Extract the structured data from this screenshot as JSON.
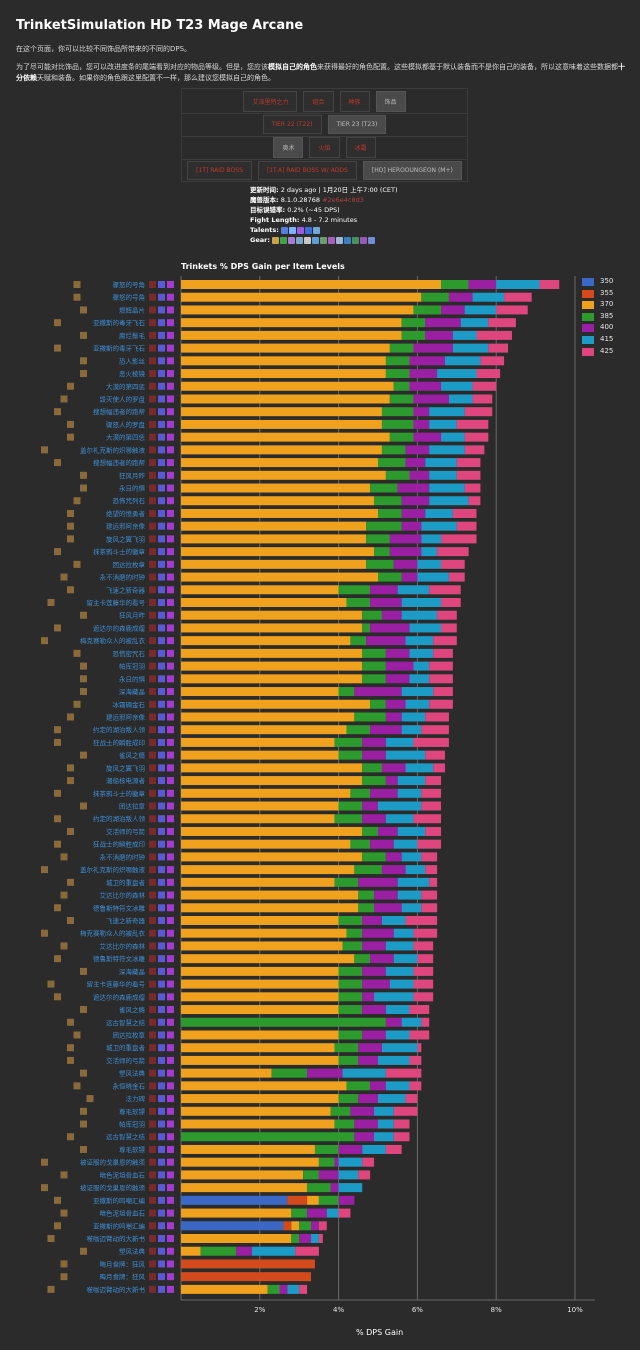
{
  "page": {
    "title": "TrinketSimulation HD T23 Mage Arcane",
    "intro": "在这个页面，你可以比较不同饰品所带来的不同的DPS。",
    "para_a": "为了尽可能对比饰品，您可以改进度条的尾端看到对应的物品等级。但是，您应该",
    "para_bold_a": "模拟自己的角色",
    "para_b": "来获得最好的角色配置。这些模拟都基于默认装备而不是你自己的装备，所以这意味着这些数据都",
    "para_bold_b": "十分依赖",
    "para_c": "天赋和装备。如果你的角色跟这里配置不一样，那么建议您模拟自己的角色。"
  },
  "tabs": {
    "row1": [
      "艾泽里特之力",
      "组合",
      "种族",
      "饰品"
    ],
    "row2": [
      "TIER 22 (T22)",
      "TIER 23 (T23)"
    ],
    "row3": [
      "奥术",
      "火焰",
      "冰霜"
    ],
    "row4": [
      "[1T] RAID BOSS",
      "[1T.A] RAID BOSS W/ ADDS",
      "[HD] HEROOUNGEON (M+)"
    ],
    "selected": {
      "row1": 3,
      "row2": 1,
      "row3": 0,
      "row4": 2
    }
  },
  "meta": {
    "updated_label": "更新时间:",
    "updated_value": "2 days ago | 1月20日 上午7:00 (CET)",
    "version_label": "魔兽版本:",
    "version_value": "8.1.0.28768",
    "version_hash": "#2e6e4c8d3",
    "error_label": "目标误错率:",
    "error_value": "0.2% (~45 DPS)",
    "fight_label": "Fight Length:",
    "fight_value": "4.8 - 7.2 minutes",
    "talents_label": "Talents:",
    "gear_label": "Gear:",
    "talent_icon_colors": [
      "#5a7fd6",
      "#7fb0ff",
      "#9b5de5",
      "#3b6ed8",
      "#6fa8dc"
    ],
    "gear_icon_colors": [
      "#caa24a",
      "#3fa34d",
      "#aa7ad6",
      "#7aa7c7",
      "#c7c7c7",
      "#5aa0d6",
      "#6c9e6c",
      "#aa5fbf",
      "#9fb6d6",
      "#3c7fbf",
      "#4a8f5f",
      "#9b59b6",
      "#6f8fcf"
    ]
  },
  "chart_data": {
    "type": "bar",
    "stacked": true,
    "title": "Trinkets % DPS Gain per Item Levels",
    "xlabel": "% DPS Gain",
    "xlim": [
      0,
      10.5
    ],
    "xticks": [
      2,
      4,
      6,
      8,
      10
    ],
    "xtick_labels": [
      "2%",
      "4%",
      "6%",
      "8%",
      "10%"
    ],
    "grid": true,
    "legend_position": "right",
    "series": [
      {
        "name": "350",
        "color": "#3a68c4"
      },
      {
        "name": "355",
        "color": "#d34a1c"
      },
      {
        "name": "370",
        "color": "#f0a11e"
      },
      {
        "name": "385",
        "color": "#2c9a2c"
      },
      {
        "name": "400",
        "color": "#9b1fa3"
      },
      {
        "name": "415",
        "color": "#1d9bc7"
      },
      {
        "name": "425",
        "color": "#e0467e"
      }
    ],
    "rows": [
      {
        "label": "骤怒的号角",
        "cumulative": [
          null,
          null,
          6.6,
          7.3,
          8.0,
          9.1,
          9.6
        ]
      },
      {
        "label": "骤怒的号角",
        "cumulative": [
          null,
          null,
          6.1,
          6.8,
          7.4,
          8.2,
          8.9
        ]
      },
      {
        "label": "燃辉晶片",
        "cumulative": [
          null,
          null,
          5.9,
          6.6,
          7.2,
          8.0,
          8.8
        ]
      },
      {
        "label": "亚撒斯的毒牙飞石",
        "cumulative": [
          null,
          null,
          5.6,
          6.2,
          7.1,
          7.8,
          8.5
        ]
      },
      {
        "label": "腐烂鬃毛",
        "cumulative": [
          null,
          null,
          5.6,
          6.2,
          6.9,
          7.5,
          8.4
        ]
      },
      {
        "label": "亚撒斯的毒牙飞石",
        "cumulative": [
          null,
          null,
          5.3,
          5.9,
          6.9,
          7.8,
          8.3
        ]
      },
      {
        "label": "恐人影丝",
        "cumulative": [
          null,
          null,
          5.2,
          5.8,
          6.7,
          7.6,
          8.2
        ]
      },
      {
        "label": "恶火棱镜",
        "cumulative": [
          null,
          null,
          5.2,
          5.8,
          6.5,
          7.5,
          8.1
        ]
      },
      {
        "label": "大漠的第四惩",
        "cumulative": [
          null,
          null,
          5.4,
          5.8,
          6.6,
          7.4,
          8.0
        ]
      },
      {
        "label": "毁灭使人的罗盘",
        "cumulative": [
          null,
          null,
          5.3,
          5.9,
          6.8,
          7.4,
          7.9
        ]
      },
      {
        "label": "搜想幅违者的跑帮",
        "cumulative": [
          null,
          null,
          5.1,
          5.9,
          6.3,
          7.2,
          7.9
        ]
      },
      {
        "label": "骤怒人的罗盘",
        "cumulative": [
          null,
          null,
          5.1,
          5.9,
          6.3,
          7.0,
          7.8
        ]
      },
      {
        "label": "大漠的第四惩",
        "cumulative": [
          null,
          null,
          5.3,
          5.9,
          6.6,
          7.2,
          7.8
        ]
      },
      {
        "label": "盖尔礼克斯的炽哪触液",
        "cumulative": [
          null,
          null,
          5.1,
          5.7,
          6.3,
          7.2,
          7.7
        ]
      },
      {
        "label": "搜想幅违者的跑帮",
        "cumulative": [
          null,
          null,
          5.0,
          5.7,
          6.2,
          7.0,
          7.6
        ]
      },
      {
        "label": "狂风月昨",
        "cumulative": [
          null,
          null,
          5.2,
          5.8,
          6.3,
          7.0,
          7.6
        ]
      },
      {
        "label": "永日的惧",
        "cumulative": [
          null,
          null,
          4.8,
          5.5,
          6.3,
          7.2,
          7.6
        ]
      },
      {
        "label": "恐怖咒列石",
        "cumulative": [
          null,
          null,
          4.9,
          5.6,
          6.3,
          7.3,
          7.6
        ]
      },
      {
        "label": "绝望的愤勇者",
        "cumulative": [
          null,
          null,
          5.0,
          5.6,
          6.2,
          6.9,
          7.5
        ]
      },
      {
        "label": "建远邪阿亲像",
        "cumulative": [
          null,
          null,
          4.7,
          5.6,
          6.1,
          7.0,
          7.5
        ]
      },
      {
        "label": "旋风之翼飞羽",
        "cumulative": [
          null,
          null,
          4.7,
          5.3,
          6.1,
          6.6,
          7.5
        ]
      },
      {
        "label": "抹茶鸦斗士的徽章",
        "cumulative": [
          null,
          null,
          4.9,
          5.3,
          6.1,
          6.5,
          7.3
        ]
      },
      {
        "label": "团达拉枚章",
        "cumulative": [
          null,
          null,
          4.7,
          5.4,
          6.0,
          6.6,
          7.2
        ]
      },
      {
        "label": "永不消磨的时钟",
        "cumulative": [
          null,
          null,
          5.0,
          5.6,
          6.0,
          6.8,
          7.2
        ]
      },
      {
        "label": "飞速之新奇器",
        "cumulative": [
          null,
          null,
          4.0,
          4.8,
          5.5,
          6.3,
          7.1
        ]
      },
      {
        "label": "留主卡莲藤华的看号",
        "cumulative": [
          null,
          null,
          4.2,
          4.8,
          5.6,
          6.6,
          7.1
        ]
      },
      {
        "label": "狂风月昨",
        "cumulative": [
          null,
          null,
          4.6,
          5.1,
          5.6,
          6.5,
          7.0
        ]
      },
      {
        "label": "遮达尔的森鹿成瘤",
        "cumulative": [
          null,
          null,
          4.6,
          4.8,
          5.8,
          6.6,
          7.0
        ]
      },
      {
        "label": "梅克赛勒众人的被乱衣",
        "cumulative": [
          null,
          null,
          4.3,
          4.7,
          5.7,
          6.4,
          7.0
        ]
      },
      {
        "label": "恐慌密咒石",
        "cumulative": [
          null,
          null,
          4.6,
          5.2,
          5.8,
          6.4,
          6.9
        ]
      },
      {
        "label": "帕库冠羽",
        "cumulative": [
          null,
          null,
          4.6,
          5.2,
          5.9,
          6.3,
          6.9
        ]
      },
      {
        "label": "永日的惧",
        "cumulative": [
          null,
          null,
          4.6,
          5.2,
          5.8,
          6.3,
          6.9
        ]
      },
      {
        "label": "深海藏晶",
        "cumulative": [
          null,
          null,
          4.0,
          4.4,
          5.6,
          6.4,
          6.9
        ]
      },
      {
        "label": "冰霜碉金石",
        "cumulative": [
          null,
          null,
          4.8,
          5.2,
          5.7,
          6.3,
          6.9
        ]
      },
      {
        "label": "建远邪阿亲像",
        "cumulative": [
          null,
          null,
          4.4,
          5.2,
          5.6,
          6.2,
          6.8
        ]
      },
      {
        "label": "约定的湖泊叛人领",
        "cumulative": [
          null,
          null,
          4.2,
          4.8,
          5.6,
          6.1,
          6.8
        ]
      },
      {
        "label": "狂战士的瞬胜成印",
        "cumulative": [
          null,
          null,
          3.9,
          4.6,
          5.2,
          5.9,
          6.8
        ]
      },
      {
        "label": "雀风之瘾",
        "cumulative": [
          null,
          null,
          4.0,
          4.6,
          5.2,
          6.2,
          6.7
        ]
      },
      {
        "label": "旋风之翼飞羽",
        "cumulative": [
          null,
          null,
          4.6,
          5.1,
          5.7,
          6.4,
          6.7
        ]
      },
      {
        "label": "潮船核电源者",
        "cumulative": [
          null,
          null,
          4.6,
          5.2,
          5.5,
          6.2,
          6.6
        ]
      },
      {
        "label": "抹茶鸦斗士的徽章",
        "cumulative": [
          null,
          null,
          4.3,
          4.8,
          5.5,
          6.1,
          6.6
        ]
      },
      {
        "label": "团达拉章",
        "cumulative": [
          null,
          null,
          4.0,
          4.6,
          5.0,
          6.1,
          6.6
        ]
      },
      {
        "label": "约定的湖泊叛人领",
        "cumulative": [
          null,
          null,
          3.9,
          4.6,
          5.2,
          5.9,
          6.6
        ]
      },
      {
        "label": "交活师的弓箭",
        "cumulative": [
          null,
          null,
          4.6,
          5.0,
          5.5,
          6.2,
          6.6
        ]
      },
      {
        "label": "狂战士的瞬胜成印",
        "cumulative": [
          null,
          null,
          4.3,
          4.8,
          5.4,
          6.0,
          6.6
        ]
      },
      {
        "label": "永不消磨的时钟",
        "cumulative": [
          null,
          null,
          4.6,
          5.2,
          5.6,
          6.1,
          6.5
        ]
      },
      {
        "label": "盖尔礼克斯的炽哪触液",
        "cumulative": [
          null,
          null,
          4.4,
          5.1,
          5.7,
          6.2,
          6.5
        ]
      },
      {
        "label": "城卫的重盘者",
        "cumulative": [
          null,
          null,
          3.9,
          4.5,
          5.5,
          6.3,
          6.5
        ]
      },
      {
        "label": "艾达比尔的森林",
        "cumulative": [
          null,
          null,
          4.5,
          4.9,
          5.5,
          6.1,
          6.5
        ]
      },
      {
        "label": "德鲁斯特符文冰雕",
        "cumulative": [
          null,
          null,
          4.5,
          4.9,
          5.6,
          6.1,
          6.5
        ]
      },
      {
        "label": "飞速之新奇器",
        "cumulative": [
          null,
          null,
          4.0,
          4.6,
          5.1,
          5.7,
          6.5
        ]
      },
      {
        "label": "梅克赛勒众人的被乱衣",
        "cumulative": [
          null,
          null,
          4.2,
          4.6,
          5.4,
          5.9,
          6.5
        ]
      },
      {
        "label": "艾达比尔的森林",
        "cumulative": [
          null,
          null,
          4.1,
          4.6,
          5.2,
          5.9,
          6.4
        ]
      },
      {
        "label": "德鲁斯特符文冰雕",
        "cumulative": [
          null,
          null,
          4.4,
          4.8,
          5.4,
          6.0,
          6.4
        ]
      },
      {
        "label": "深海藏晶",
        "cumulative": [
          null,
          null,
          4.0,
          4.6,
          5.2,
          5.9,
          6.4
        ]
      },
      {
        "label": "留主卡莲藤华的看号",
        "cumulative": [
          null,
          null,
          4.0,
          4.6,
          5.3,
          5.9,
          6.4
        ]
      },
      {
        "label": "遮达尔的森鹿成瘤",
        "cumulative": [
          null,
          null,
          4.0,
          4.6,
          4.9,
          5.9,
          6.4
        ]
      },
      {
        "label": "雀风之瘾",
        "cumulative": [
          null,
          null,
          4.0,
          4.6,
          5.2,
          5.8,
          6.3
        ]
      },
      {
        "label": "远古智慧之结",
        "cumulative": [
          null,
          null,
          0.0,
          5.2,
          5.6,
          6.1,
          6.3
        ]
      },
      {
        "label": "团达拉枚章",
        "cumulative": [
          null,
          null,
          4.0,
          4.6,
          5.2,
          5.8,
          6.3
        ]
      },
      {
        "label": "城卫的重盘者",
        "cumulative": [
          null,
          null,
          3.9,
          4.5,
          5.1,
          6.0,
          6.1
        ]
      },
      {
        "label": "交活师的弓箭",
        "cumulative": [
          null,
          null,
          4.0,
          4.5,
          5.0,
          5.8,
          6.1
        ]
      },
      {
        "label": "塑风法典",
        "cumulative": [
          null,
          null,
          2.3,
          3.2,
          4.1,
          5.2,
          6.1
        ]
      },
      {
        "label": "永恒晓金石",
        "cumulative": [
          null,
          null,
          4.2,
          4.8,
          5.2,
          5.8,
          6.1
        ]
      },
      {
        "label": "法力碑",
        "cumulative": [
          null,
          null,
          4.0,
          4.5,
          5.0,
          5.7,
          6.0
        ]
      },
      {
        "label": "尊毛软镖",
        "cumulative": [
          null,
          null,
          3.8,
          4.3,
          4.9,
          5.4,
          6.0
        ]
      },
      {
        "label": "帕库冠羽",
        "cumulative": [
          null,
          null,
          3.9,
          4.4,
          5.0,
          5.4,
          5.8
        ]
      },
      {
        "label": "远古智慧之结",
        "cumulative": [
          null,
          null,
          0.0,
          4.4,
          4.9,
          5.4,
          5.8
        ]
      },
      {
        "label": "尊毛软镖",
        "cumulative": [
          null,
          null,
          3.4,
          4.0,
          4.6,
          5.2,
          5.6
        ]
      },
      {
        "label": "被证服的戈巢恩的触须",
        "cumulative": [
          null,
          null,
          3.5,
          3.9,
          4.0,
          4.6,
          4.9
        ]
      },
      {
        "label": "暗色泥坦骨血石",
        "cumulative": [
          null,
          null,
          3.1,
          3.5,
          4.0,
          4.5,
          4.8
        ]
      },
      {
        "label": "被证服的戈巢恩的触须",
        "cumulative": [
          null,
          null,
          3.2,
          3.8,
          4.0,
          4.6,
          4.6
        ]
      },
      {
        "label": "亚撒斯的鸣嘲汇编",
        "cumulative": [
          2.7,
          3.2,
          3.5,
          4.0,
          4.4,
          4.4,
          4.4
        ]
      },
      {
        "label": "暗色泥坦骨血石",
        "cumulative": [
          null,
          null,
          2.8,
          3.2,
          3.7,
          4.0,
          4.3
        ]
      },
      {
        "label": "亚撒斯的鸣嘲汇编",
        "cumulative": [
          2.6,
          2.8,
          3.0,
          3.3,
          3.5,
          3.5,
          3.7
        ]
      },
      {
        "label": "噬咖迈臂动的大新书",
        "cumulative": [
          null,
          null,
          2.8,
          3.0,
          3.3,
          3.5,
          3.6
        ]
      },
      {
        "label": "塑风法典",
        "cumulative": [
          null,
          null,
          0.5,
          1.4,
          1.8,
          2.9,
          3.5
        ]
      },
      {
        "label": "晦月食牌：狂风",
        "cumulative": [
          null,
          3.4,
          null,
          null,
          null,
          null,
          null
        ]
      },
      {
        "label": "晦月食牌：狂风",
        "cumulative": [
          null,
          3.3,
          null,
          null,
          null,
          null,
          null
        ]
      },
      {
        "label": "噬咖迈臂动的大新书",
        "cumulative": [
          null,
          null,
          2.2,
          2.5,
          2.7,
          3.0,
          3.2
        ]
      }
    ]
  }
}
